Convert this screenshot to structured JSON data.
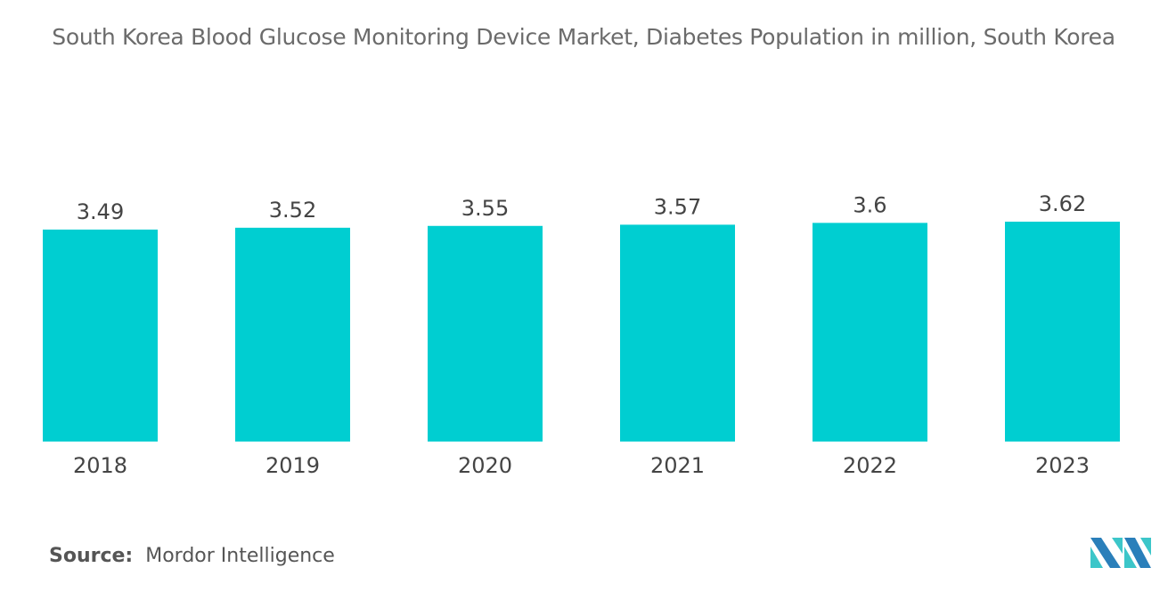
{
  "chart_data": {
    "type": "bar",
    "title": "South Korea Blood Glucose Monitoring Device Market, Diabetes Population in million, South Korea",
    "categories": [
      "2018",
      "2019",
      "2020",
      "2021",
      "2022",
      "2023"
    ],
    "values": [
      3.49,
      3.52,
      3.55,
      3.57,
      3.6,
      3.62
    ],
    "value_labels": [
      "3.49",
      "3.52",
      "3.55",
      "3.57",
      "3.6",
      "3.62"
    ],
    "xlabel": "",
    "ylabel": "",
    "ylim": [
      0,
      3.62
    ],
    "grid": false,
    "bar_color": "#00CED1"
  },
  "source": {
    "label": "Source:",
    "value": "Mordor Intelligence"
  },
  "logo": {
    "text": "Mordor Intelligence",
    "colors": [
      "#2a7fba",
      "#3cc6c9"
    ]
  }
}
